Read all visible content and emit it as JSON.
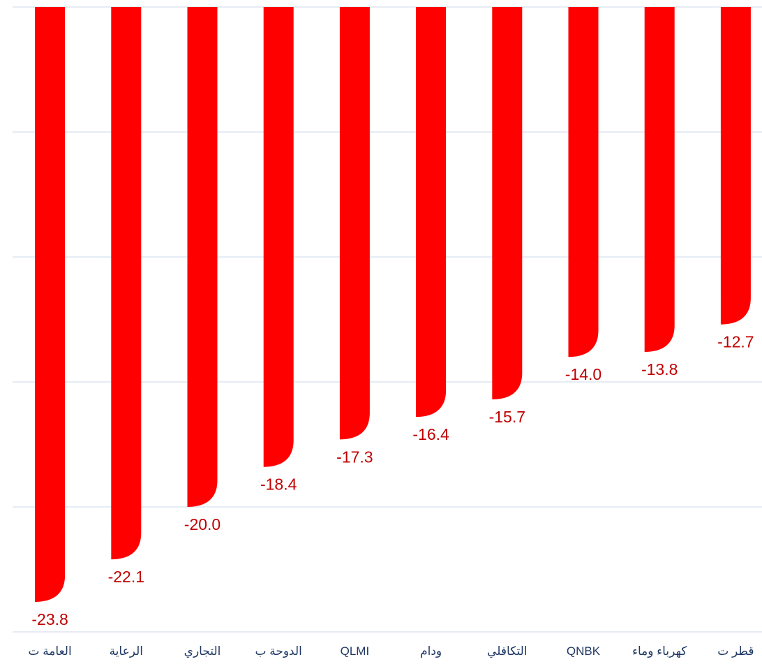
{
  "chart_data": {
    "type": "bar",
    "categories": [
      "العامة ت",
      "الرعاية",
      "التجاري",
      "الدوحة ب",
      "QLMI",
      "ودام",
      "التكافلي",
      "QNBK",
      "كهرباء وماء",
      "قطر ت"
    ],
    "values": [
      -23.8,
      -22.1,
      -20.0,
      -18.4,
      -17.3,
      -16.4,
      -15.7,
      -14.0,
      -13.8,
      -12.7
    ],
    "data_labels": [
      "-23.8",
      "-22.1",
      "-20.0",
      "-18.4",
      "-17.3",
      "-16.4",
      "-15.7",
      "-14.0",
      "-13.8",
      "-12.7"
    ],
    "ylim": [
      -25,
      0
    ],
    "grid": true,
    "legend": "none",
    "title": "",
    "xlabel": "",
    "ylabel": ""
  },
  "colors": {
    "bar": "#ff0000",
    "value_label": "#c00000",
    "category_label": "#1f3864",
    "gridline": "#d6e0ee"
  }
}
